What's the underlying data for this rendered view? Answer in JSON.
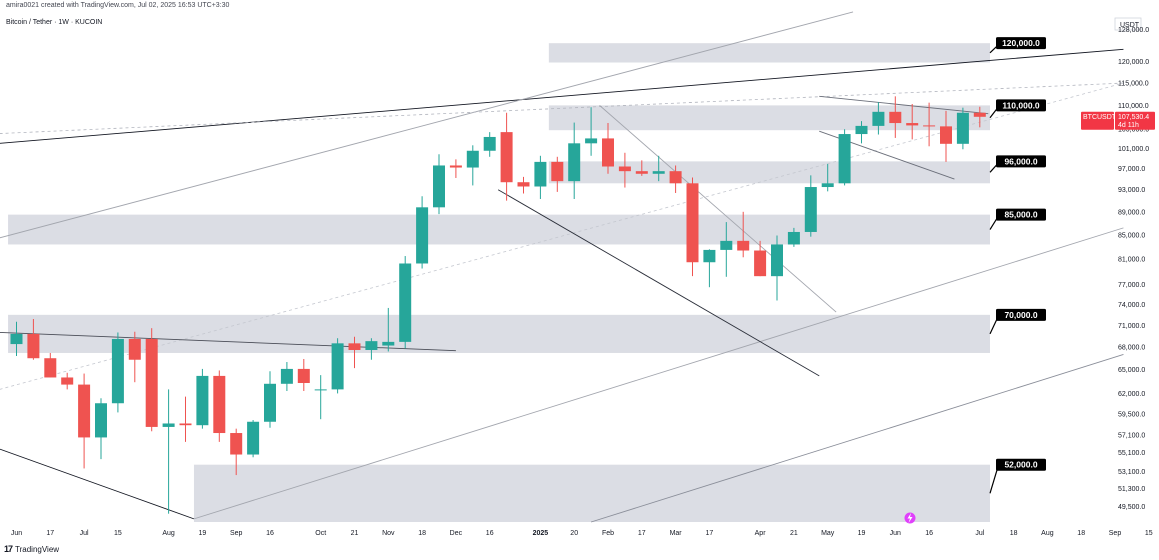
{
  "header": {
    "created_by": "amira0021 created with TradingView.com, Jul 02, 2025 16:53 UTC+3:30",
    "symbol_line": "Bitcoin / Tether · 1W · KUCOIN"
  },
  "footer": {
    "logo_text": "TradingView",
    "logo_mark": "17"
  },
  "chart_data": {
    "type": "candlestick",
    "title": "Bitcoin / Tether · 1W · KUCOIN",
    "currency": "USDT",
    "ylim": [
      48000,
      133000
    ],
    "y_ticks": [
      49500,
      51300,
      53100,
      55100,
      57100,
      59500,
      62000,
      65000,
      68000,
      71000,
      74000,
      77000,
      81000,
      85000,
      89000,
      93000,
      97000,
      101000,
      105000,
      110000,
      115000,
      120000,
      128000
    ],
    "y_tick_labels": [
      "49,500.0",
      "51,300.0",
      "53,100.0",
      "55,100.0",
      "57,100.0",
      "59,500.0",
      "62,000.0",
      "65,000.0",
      "68,000.0",
      "71,000.0",
      "74,000.0",
      "77,000.0",
      "81,000.0",
      "85,000.0",
      "89,000.0",
      "93,000.0",
      "97,000.0",
      "101,000.0",
      "105,000.0",
      "110,000.0",
      "115,000.0",
      "120,000.0",
      "128,000.0"
    ],
    "x_labels": [
      {
        "text": "Jun",
        "bar": 0
      },
      {
        "text": "17",
        "bar": 2
      },
      {
        "text": "Jul",
        "bar": 4
      },
      {
        "text": "15",
        "bar": 6
      },
      {
        "text": "Aug",
        "bar": 9
      },
      {
        "text": "19",
        "bar": 11
      },
      {
        "text": "Sep",
        "bar": 13
      },
      {
        "text": "16",
        "bar": 15
      },
      {
        "text": "Oct",
        "bar": 18
      },
      {
        "text": "21",
        "bar": 20
      },
      {
        "text": "Nov",
        "bar": 22
      },
      {
        "text": "18",
        "bar": 24
      },
      {
        "text": "Dec",
        "bar": 26
      },
      {
        "text": "16",
        "bar": 28
      },
      {
        "text": "2025",
        "bar": 31
      },
      {
        "text": "20",
        "bar": 33
      },
      {
        "text": "Feb",
        "bar": 35
      },
      {
        "text": "17",
        "bar": 37
      },
      {
        "text": "Mar",
        "bar": 39
      },
      {
        "text": "17",
        "bar": 41
      },
      {
        "text": "Apr",
        "bar": 44
      },
      {
        "text": "21",
        "bar": 46
      },
      {
        "text": "May",
        "bar": 48
      },
      {
        "text": "19",
        "bar": 50
      },
      {
        "text": "Jun",
        "bar": 52
      },
      {
        "text": "16",
        "bar": 54
      },
      {
        "text": "Jul",
        "bar": 57
      },
      {
        "text": "18",
        "bar": 59
      },
      {
        "text": "Aug",
        "bar": 61
      },
      {
        "text": "18",
        "bar": 63
      },
      {
        "text": "Sep",
        "bar": 65
      },
      {
        "text": "15",
        "bar": 67
      }
    ],
    "candles": [
      {
        "o": 68400,
        "h": 71500,
        "l": 66800,
        "c": 69800
      },
      {
        "o": 69800,
        "h": 71900,
        "l": 66300,
        "c": 66500
      },
      {
        "o": 66500,
        "h": 67200,
        "l": 64000,
        "c": 64000
      },
      {
        "o": 64000,
        "h": 64600,
        "l": 62500,
        "c": 63100
      },
      {
        "o": 63100,
        "h": 64500,
        "l": 53400,
        "c": 56800
      },
      {
        "o": 56800,
        "h": 61400,
        "l": 54400,
        "c": 60800
      },
      {
        "o": 60800,
        "h": 70000,
        "l": 59700,
        "c": 69100
      },
      {
        "o": 69100,
        "h": 70100,
        "l": 63400,
        "c": 66300
      },
      {
        "o": 69100,
        "h": 70600,
        "l": 57500,
        "c": 58000
      },
      {
        "o": 58000,
        "h": 62500,
        "l": 48800,
        "c": 58400
      },
      {
        "o": 58400,
        "h": 61600,
        "l": 56300,
        "c": 58200
      },
      {
        "o": 58200,
        "h": 65100,
        "l": 57800,
        "c": 64200
      },
      {
        "o": 64200,
        "h": 64900,
        "l": 56300,
        "c": 57300
      },
      {
        "o": 57300,
        "h": 57800,
        "l": 52700,
        "c": 54900
      },
      {
        "o": 54900,
        "h": 58800,
        "l": 54600,
        "c": 58600
      },
      {
        "o": 58600,
        "h": 64800,
        "l": 57900,
        "c": 63200
      },
      {
        "o": 63200,
        "h": 66000,
        "l": 62300,
        "c": 65100
      },
      {
        "o": 65100,
        "h": 66400,
        "l": 62300,
        "c": 63300
      },
      {
        "o": 62400,
        "h": 64300,
        "l": 58900,
        "c": 62500
      },
      {
        "o": 62500,
        "h": 69200,
        "l": 62000,
        "c": 68500
      },
      {
        "o": 68500,
        "h": 69400,
        "l": 65200,
        "c": 67600
      },
      {
        "o": 67600,
        "h": 69200,
        "l": 66300,
        "c": 68800
      },
      {
        "o": 68200,
        "h": 73500,
        "l": 67400,
        "c": 68700
      },
      {
        "o": 68700,
        "h": 81500,
        "l": 67800,
        "c": 80300
      },
      {
        "o": 80300,
        "h": 91800,
        "l": 79500,
        "c": 89800
      },
      {
        "o": 89800,
        "h": 99800,
        "l": 88600,
        "c": 97600
      },
      {
        "o": 97600,
        "h": 98800,
        "l": 95200,
        "c": 97200
      },
      {
        "o": 97200,
        "h": 101600,
        "l": 93800,
        "c": 100500
      },
      {
        "o": 100500,
        "h": 104300,
        "l": 99300,
        "c": 103300
      },
      {
        "o": 104300,
        "h": 108400,
        "l": 91000,
        "c": 94400
      },
      {
        "o": 94400,
        "h": 95400,
        "l": 92300,
        "c": 93600
      },
      {
        "o": 93600,
        "h": 99500,
        "l": 91300,
        "c": 98300
      },
      {
        "o": 98300,
        "h": 99300,
        "l": 92600,
        "c": 94600
      },
      {
        "o": 94600,
        "h": 106300,
        "l": 91300,
        "c": 102000
      },
      {
        "o": 102000,
        "h": 109600,
        "l": 99500,
        "c": 103000
      },
      {
        "o": 103000,
        "h": 106200,
        "l": 96000,
        "c": 97400
      },
      {
        "o": 97400,
        "h": 100100,
        "l": 93400,
        "c": 96500
      },
      {
        "o": 96500,
        "h": 98600,
        "l": 95600,
        "c": 96000
      },
      {
        "o": 96000,
        "h": 99500,
        "l": 94600,
        "c": 96500
      },
      {
        "o": 96500,
        "h": 97600,
        "l": 92400,
        "c": 94200
      },
      {
        "o": 94200,
        "h": 95300,
        "l": 78300,
        "c": 80500
      },
      {
        "o": 80500,
        "h": 82600,
        "l": 76600,
        "c": 82500
      },
      {
        "o": 82500,
        "h": 87200,
        "l": 78200,
        "c": 84000
      },
      {
        "o": 84000,
        "h": 89000,
        "l": 81300,
        "c": 82400
      },
      {
        "o": 82400,
        "h": 84000,
        "l": 78300,
        "c": 78300
      },
      {
        "o": 78300,
        "h": 84900,
        "l": 74600,
        "c": 83400
      },
      {
        "o": 83400,
        "h": 86200,
        "l": 83000,
        "c": 85500
      },
      {
        "o": 85500,
        "h": 95700,
        "l": 84700,
        "c": 93500
      },
      {
        "o": 93500,
        "h": 97900,
        "l": 92700,
        "c": 94200
      },
      {
        "o": 94200,
        "h": 104900,
        "l": 93800,
        "c": 103900
      },
      {
        "o": 103900,
        "h": 106600,
        "l": 102000,
        "c": 105600
      },
      {
        "o": 105600,
        "h": 110700,
        "l": 103800,
        "c": 108600
      },
      {
        "o": 108600,
        "h": 112000,
        "l": 103100,
        "c": 106200
      },
      {
        "o": 106200,
        "h": 110300,
        "l": 102800,
        "c": 105700
      },
      {
        "o": 105700,
        "h": 110600,
        "l": 101400,
        "c": 105500
      },
      {
        "o": 105500,
        "h": 108800,
        "l": 98300,
        "c": 101900
      },
      {
        "o": 101900,
        "h": 109500,
        "l": 100800,
        "c": 108400
      },
      {
        "o": 108400,
        "h": 109700,
        "l": 105300,
        "c": 107530
      }
    ],
    "zones": [
      {
        "label": "120,000.0",
        "from_bar": 31.5,
        "top": 124500,
        "bottom": 119800
      },
      {
        "label": "110,000.0",
        "from_bar": 31.5,
        "top": 110000,
        "bottom": 104700
      },
      {
        "label": "96,000.0",
        "from_bar": 31.5,
        "top": 98400,
        "bottom": 94200
      },
      {
        "label": "85,000.0",
        "from_bar": -0.5,
        "top": 88500,
        "bottom": 83400
      },
      {
        "label": "70,000.0",
        "from_bar": -0.5,
        "top": 72500,
        "bottom": 67200
      },
      {
        "label": "52,000.0",
        "from_bar": 10.5,
        "top": 53800,
        "bottom": 48000
      }
    ],
    "current_price": {
      "symbol": "BTCUSDT",
      "price": "107,530.4",
      "countdown": "4d 11h"
    },
    "axis_currency_label": "USDT"
  },
  "colors": {
    "up": "#26a69a",
    "down": "#ef5350",
    "zone": "#d1d4dc",
    "badge_bg": "#000000",
    "axis_text": "#131722",
    "price_tag": "#f23645"
  }
}
